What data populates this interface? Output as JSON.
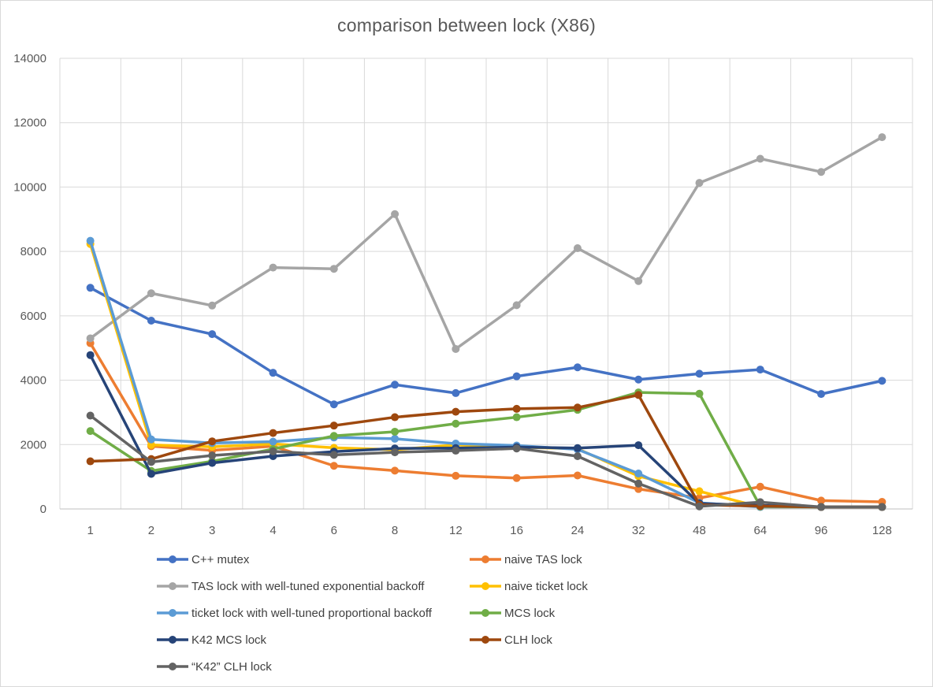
{
  "chart_data": {
    "type": "line",
    "title": "comparison between lock (X86)",
    "xlabel": "",
    "ylabel": "",
    "categories": [
      "1",
      "2",
      "3",
      "4",
      "6",
      "8",
      "12",
      "16",
      "24",
      "32",
      "48",
      "64",
      "96",
      "128"
    ],
    "ylim": [
      0,
      14000
    ],
    "yticks": [
      0,
      2000,
      4000,
      6000,
      8000,
      10000,
      12000,
      14000
    ],
    "grid": true,
    "legend_position": "bottom",
    "series": [
      {
        "name": "C++ mutex",
        "color": "#4472c4",
        "values": [
          6870,
          5850,
          5430,
          4230,
          3250,
          3860,
          3600,
          4120,
          4400,
          4020,
          4200,
          4330,
          3570,
          3980
        ]
      },
      {
        "name": "naive TAS lock",
        "color": "#ed7d31",
        "values": [
          5150,
          1950,
          1820,
          1950,
          1340,
          1190,
          1030,
          960,
          1040,
          620,
          340,
          690,
          260,
          220
        ]
      },
      {
        "name": "TAS lock with well-tuned exponential backoff",
        "color": "#a5a5a5",
        "values": [
          5300,
          6700,
          6320,
          7500,
          7460,
          9160,
          4970,
          6330,
          8100,
          7080,
          10130,
          10880,
          10470,
          11550
        ]
      },
      {
        "name": "naive ticket lock",
        "color": "#ffc000",
        "values": [
          8230,
          1990,
          1930,
          2020,
          1900,
          1840,
          1990,
          1920,
          1870,
          1020,
          550,
          60,
          60,
          60
        ]
      },
      {
        "name": "ticket lock with well-tuned proportional backoff",
        "color": "#5b9bd5",
        "values": [
          8330,
          2160,
          2050,
          2090,
          2220,
          2180,
          2030,
          1970,
          1850,
          1100,
          190,
          60,
          60,
          60
        ]
      },
      {
        "name": "MCS lock",
        "color": "#70ad47",
        "values": [
          2420,
          1180,
          1480,
          1860,
          2270,
          2400,
          2650,
          2850,
          3080,
          3620,
          3580,
          80,
          60,
          60
        ]
      },
      {
        "name": "K42 MCS lock",
        "color": "#264478",
        "values": [
          4780,
          1090,
          1430,
          1640,
          1780,
          1880,
          1890,
          1920,
          1890,
          1980,
          170,
          110,
          60,
          60
        ]
      },
      {
        "name": "CLH lock",
        "color": "#9e480e",
        "values": [
          1480,
          1550,
          2100,
          2360,
          2590,
          2850,
          3020,
          3110,
          3150,
          3540,
          130,
          90,
          60,
          60
        ]
      },
      {
        "name": "“K42” CLH lock",
        "color": "#636363",
        "values": [
          2900,
          1460,
          1660,
          1790,
          1680,
          1760,
          1810,
          1880,
          1640,
          790,
          80,
          210,
          60,
          60
        ]
      }
    ]
  }
}
